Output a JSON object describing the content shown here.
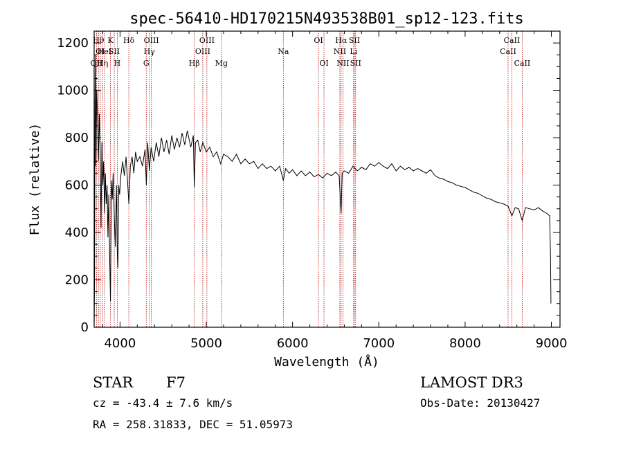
{
  "chart_data": {
    "type": "line",
    "title": "spec-56410-HD170215N493538B01_sp12-123.fits",
    "xlabel": "Wavelength (Å)",
    "ylabel": "Flux (relative)",
    "xlim": [
      3700,
      9100
    ],
    "ylim": [
      0,
      1250
    ],
    "xticks": [
      4000,
      5000,
      6000,
      7000,
      8000,
      9000
    ],
    "yticks": [
      0,
      200,
      400,
      600,
      800,
      1000,
      1200
    ],
    "series": [
      {
        "name": "flux",
        "points": [
          [
            3700,
            0
          ],
          [
            3705,
            200
          ],
          [
            3710,
            950
          ],
          [
            3715,
            1150
          ],
          [
            3720,
            680
          ],
          [
            3730,
            1000
          ],
          [
            3740,
            880
          ],
          [
            3750,
            700
          ],
          [
            3760,
            900
          ],
          [
            3770,
            750
          ],
          [
            3780,
            420
          ],
          [
            3790,
            780
          ],
          [
            3800,
            600
          ],
          [
            3810,
            700
          ],
          [
            3820,
            480
          ],
          [
            3830,
            650
          ],
          [
            3840,
            520
          ],
          [
            3850,
            600
          ],
          [
            3860,
            380
          ],
          [
            3870,
            560
          ],
          [
            3880,
            300
          ],
          [
            3889,
            110
          ],
          [
            3900,
            620
          ],
          [
            3910,
            540
          ],
          [
            3920,
            650
          ],
          [
            3933,
            480
          ],
          [
            3945,
            340
          ],
          [
            3958,
            600
          ],
          [
            3968,
            320
          ],
          [
            3975,
            250
          ],
          [
            3985,
            600
          ],
          [
            3995,
            560
          ],
          [
            4010,
            640
          ],
          [
            4030,
            700
          ],
          [
            4050,
            640
          ],
          [
            4070,
            720
          ],
          [
            4090,
            600
          ],
          [
            4102,
            520
          ],
          [
            4120,
            680
          ],
          [
            4140,
            720
          ],
          [
            4160,
            650
          ],
          [
            4180,
            740
          ],
          [
            4200,
            700
          ],
          [
            4230,
            720
          ],
          [
            4260,
            680
          ],
          [
            4290,
            750
          ],
          [
            4305,
            600
          ],
          [
            4320,
            780
          ],
          [
            4340,
            660
          ],
          [
            4360,
            760
          ],
          [
            4390,
            700
          ],
          [
            4420,
            780
          ],
          [
            4450,
            720
          ],
          [
            4480,
            800
          ],
          [
            4510,
            740
          ],
          [
            4540,
            790
          ],
          [
            4570,
            730
          ],
          [
            4600,
            810
          ],
          [
            4630,
            750
          ],
          [
            4660,
            800
          ],
          [
            4690,
            760
          ],
          [
            4720,
            820
          ],
          [
            4750,
            770
          ],
          [
            4780,
            830
          ],
          [
            4820,
            760
          ],
          [
            4850,
            810
          ],
          [
            4861,
            590
          ],
          [
            4875,
            780
          ],
          [
            4900,
            790
          ],
          [
            4930,
            740
          ],
          [
            4960,
            780
          ],
          [
            5000,
            740
          ],
          [
            5040,
            760
          ],
          [
            5080,
            720
          ],
          [
            5120,
            740
          ],
          [
            5167,
            690
          ],
          [
            5200,
            730
          ],
          [
            5250,
            720
          ],
          [
            5300,
            700
          ],
          [
            5350,
            730
          ],
          [
            5400,
            690
          ],
          [
            5450,
            710
          ],
          [
            5500,
            690
          ],
          [
            5550,
            700
          ],
          [
            5600,
            670
          ],
          [
            5650,
            690
          ],
          [
            5700,
            670
          ],
          [
            5750,
            680
          ],
          [
            5800,
            660
          ],
          [
            5850,
            680
          ],
          [
            5893,
            620
          ],
          [
            5920,
            670
          ],
          [
            5960,
            650
          ],
          [
            6000,
            665
          ],
          [
            6050,
            640
          ],
          [
            6100,
            660
          ],
          [
            6150,
            640
          ],
          [
            6200,
            655
          ],
          [
            6250,
            635
          ],
          [
            6300,
            645
          ],
          [
            6350,
            630
          ],
          [
            6400,
            650
          ],
          [
            6450,
            640
          ],
          [
            6500,
            655
          ],
          [
            6540,
            640
          ],
          [
            6563,
            480
          ],
          [
            6575,
            650
          ],
          [
            6600,
            660
          ],
          [
            6650,
            650
          ],
          [
            6700,
            680
          ],
          [
            6750,
            660
          ],
          [
            6800,
            675
          ],
          [
            6850,
            665
          ],
          [
            6900,
            690
          ],
          [
            6950,
            680
          ],
          [
            7000,
            695
          ],
          [
            7050,
            680
          ],
          [
            7100,
            670
          ],
          [
            7150,
            690
          ],
          [
            7200,
            660
          ],
          [
            7250,
            680
          ],
          [
            7300,
            665
          ],
          [
            7350,
            675
          ],
          [
            7400,
            660
          ],
          [
            7450,
            670
          ],
          [
            7500,
            660
          ],
          [
            7550,
            650
          ],
          [
            7600,
            665
          ],
          [
            7650,
            640
          ],
          [
            7700,
            630
          ],
          [
            7750,
            625
          ],
          [
            7800,
            615
          ],
          [
            7850,
            610
          ],
          [
            7900,
            600
          ],
          [
            7950,
            595
          ],
          [
            8000,
            590
          ],
          [
            8050,
            580
          ],
          [
            8100,
            570
          ],
          [
            8150,
            565
          ],
          [
            8200,
            555
          ],
          [
            8250,
            545
          ],
          [
            8300,
            540
          ],
          [
            8350,
            530
          ],
          [
            8400,
            525
          ],
          [
            8450,
            520
          ],
          [
            8500,
            510
          ],
          [
            8542,
            470
          ],
          [
            8580,
            505
          ],
          [
            8620,
            500
          ],
          [
            8662,
            450
          ],
          [
            8700,
            505
          ],
          [
            8750,
            500
          ],
          [
            8800,
            495
          ],
          [
            8850,
            505
          ],
          [
            8900,
            490
          ],
          [
            8950,
            480
          ],
          [
            8980,
            470
          ],
          [
            8990,
            300
          ],
          [
            8995,
            100
          ]
        ]
      }
    ],
    "lines": [
      {
        "wl": 3727,
        "label": "OII",
        "row": 3
      },
      {
        "wl": 3750,
        "label": "Hθ",
        "row": 1
      },
      {
        "wl": 3771,
        "label": "OI",
        "row": 2
      },
      {
        "wl": 3797,
        "label": "Hη",
        "row": 3
      },
      {
        "wl": 3820,
        "label": "HeI",
        "row": 2
      },
      {
        "wl": 3889,
        "label": "K",
        "row": 1
      },
      {
        "wl": 3933,
        "label": "SII",
        "row": 2
      },
      {
        "wl": 3968,
        "label": "H",
        "row": 3
      },
      {
        "wl": 4102,
        "label": "Hδ",
        "row": 1
      },
      {
        "wl": 4304,
        "label": "G",
        "row": 3
      },
      {
        "wl": 4340,
        "label": "Hγ",
        "row": 2
      },
      {
        "wl": 4363,
        "label": "OIII",
        "row": 1
      },
      {
        "wl": 4861,
        "label": "Hβ",
        "row": 3
      },
      {
        "wl": 4959,
        "label": "OIII",
        "row": 2
      },
      {
        "wl": 5007,
        "label": "OIII",
        "row": 1
      },
      {
        "wl": 5176,
        "label": "Mg",
        "row": 3
      },
      {
        "wl": 5893,
        "label": "Na",
        "row": 2
      },
      {
        "wl": 6300,
        "label": "OI",
        "row": 1
      },
      {
        "wl": 6364,
        "label": "OI",
        "row": 3
      },
      {
        "wl": 6548,
        "label": "NII",
        "row": 2
      },
      {
        "wl": 6563,
        "label": "Hα",
        "row": 1
      },
      {
        "wl": 6584,
        "label": "NII",
        "row": 3
      },
      {
        "wl": 6707,
        "label": "Li",
        "row": 2
      },
      {
        "wl": 6717,
        "label": "SII",
        "row": 1
      },
      {
        "wl": 6731,
        "label": "SII",
        "row": 3
      },
      {
        "wl": 8498,
        "label": "CaII",
        "row": 2
      },
      {
        "wl": 8542,
        "label": "CaII",
        "row": 1
      },
      {
        "wl": 8662,
        "label": "CaII",
        "row": 3
      }
    ]
  },
  "info": {
    "class_label": "STAR",
    "subclass": "F7",
    "survey": "LAMOST DR3",
    "cz": "cz = -43.4 ± 7.6 km/s",
    "obs_date": "Obs-Date: 20130427",
    "radec": "RA = 258.31833, DEC =  51.05973"
  }
}
